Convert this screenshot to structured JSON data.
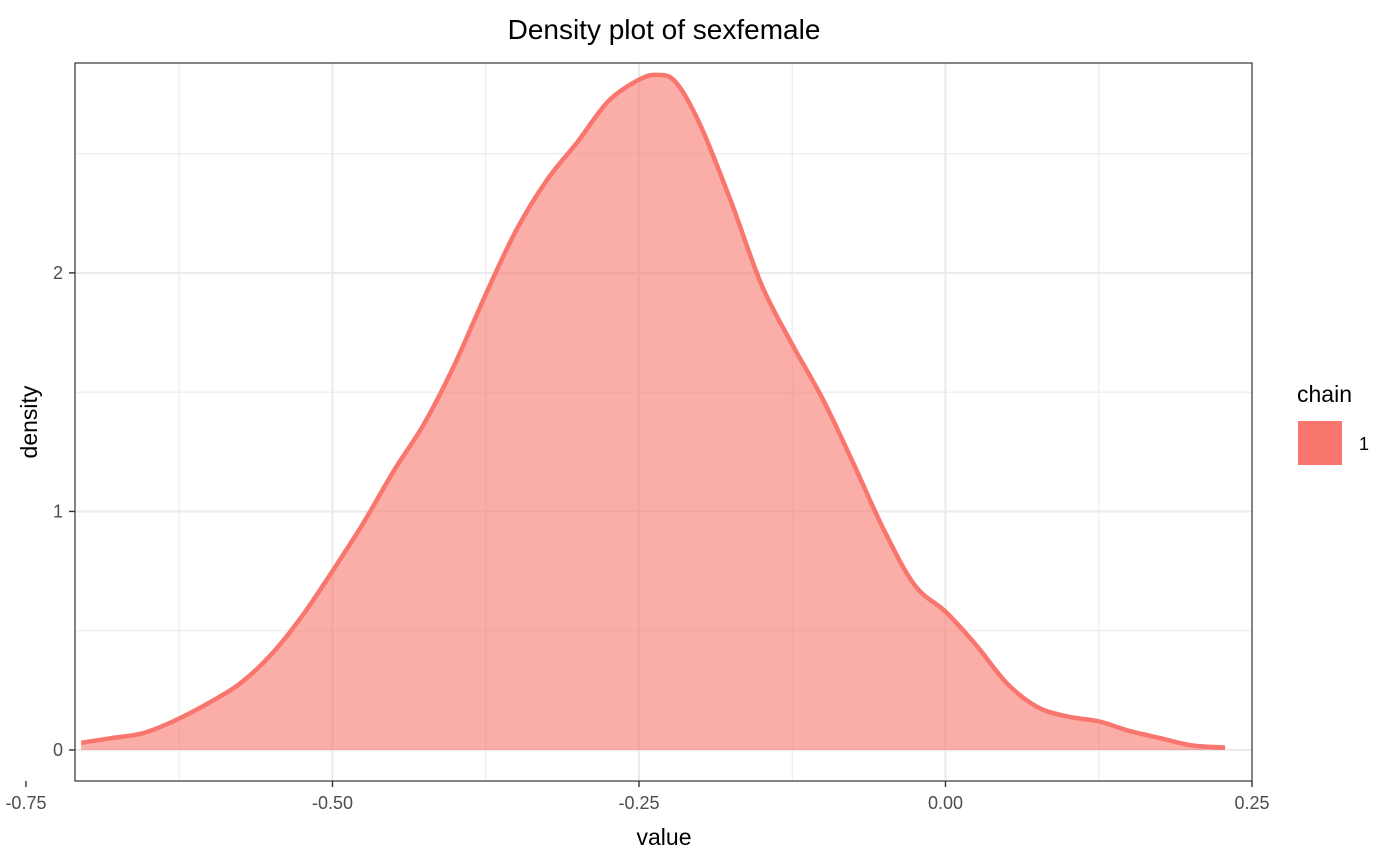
{
  "chart_data": {
    "type": "area",
    "title": "Density plot of  sexfemale",
    "xlabel": "value",
    "ylabel": "density",
    "xlim": [
      -0.71,
      0.25
    ],
    "ylim": [
      -0.13,
      2.88
    ],
    "x_ticks": [
      -0.75,
      -0.5,
      -0.25,
      0.0,
      0.25
    ],
    "x_tick_labels": [
      "-0.75",
      "-0.50",
      "-0.25",
      "0.00",
      "0.25"
    ],
    "y_ticks": [
      0,
      1,
      2
    ],
    "y_tick_labels": [
      "0",
      "1",
      "2"
    ],
    "grid": true,
    "legend": {
      "title": "chain",
      "position": "right",
      "entries": [
        {
          "label": "1",
          "color": "#F8766D"
        }
      ]
    },
    "series": [
      {
        "name": "1",
        "color": "#F8766D",
        "fill_color": "#F8766D",
        "fill_opacity": 0.6,
        "x": [
          -0.705,
          -0.68,
          -0.655,
          -0.63,
          -0.6,
          -0.575,
          -0.55,
          -0.525,
          -0.5,
          -0.475,
          -0.45,
          -0.425,
          -0.4,
          -0.375,
          -0.35,
          -0.325,
          -0.3,
          -0.275,
          -0.25,
          -0.235,
          -0.22,
          -0.2,
          -0.175,
          -0.15,
          -0.125,
          -0.1,
          -0.075,
          -0.05,
          -0.025,
          0.0,
          0.025,
          0.05,
          0.075,
          0.1,
          0.125,
          0.15,
          0.175,
          0.2,
          0.228
        ],
        "y": [
          0.03,
          0.05,
          0.07,
          0.12,
          0.2,
          0.28,
          0.4,
          0.56,
          0.75,
          0.95,
          1.17,
          1.37,
          1.62,
          1.91,
          2.18,
          2.39,
          2.55,
          2.72,
          2.81,
          2.83,
          2.8,
          2.62,
          2.3,
          1.95,
          1.7,
          1.47,
          1.2,
          0.92,
          0.69,
          0.58,
          0.44,
          0.28,
          0.18,
          0.14,
          0.12,
          0.08,
          0.05,
          0.02,
          0.01
        ]
      }
    ]
  }
}
